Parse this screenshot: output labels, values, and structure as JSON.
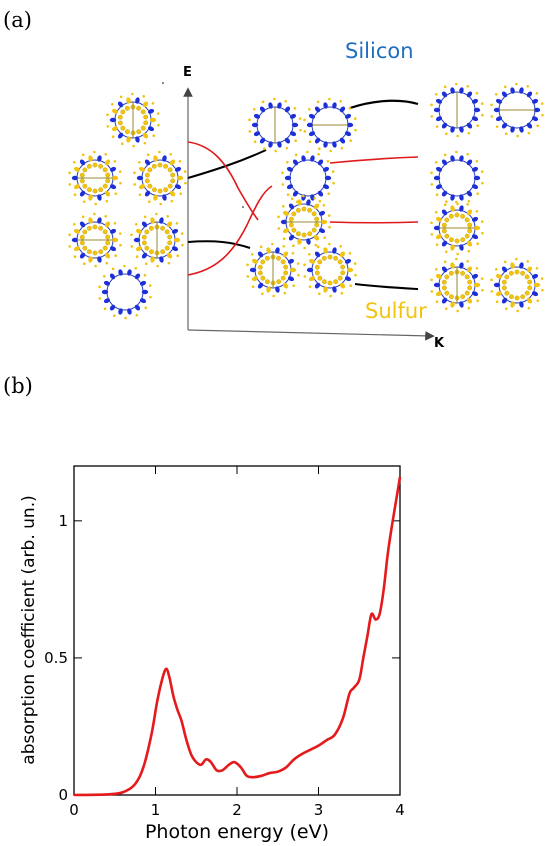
{
  "panel_a": {
    "label": "(a)",
    "e_axis": "E",
    "k_axis": "K",
    "silicon": "Silicon",
    "sulfur": "Sulfur",
    "colors": {
      "silicon": "#1f6fc0",
      "sulfur": "#f2c30f",
      "band_black": "#000000",
      "band_red": "#e0191b"
    }
  },
  "panel_b": {
    "label": "(b)"
  },
  "chart_data": {
    "type": "line",
    "title": "",
    "xlabel": "Photon energy (eV)",
    "ylabel": "absorption coefficient (arb. un.)",
    "xlim": [
      0,
      4
    ],
    "ylim": [
      0,
      1.2
    ],
    "xticks": [
      0,
      1,
      2,
      3,
      4
    ],
    "yticks": [
      0,
      0.5,
      1
    ],
    "xtick_labels": [
      "0",
      "1",
      "2",
      "3",
      "4"
    ],
    "ytick_labels": [
      "0",
      "0.5",
      "1"
    ],
    "grid": false,
    "color": "#e41a1c",
    "series": [
      {
        "x": [
          0,
          0.4,
          0.6,
          0.75,
          0.85,
          0.95,
          1.02,
          1.08,
          1.13,
          1.17,
          1.22,
          1.27,
          1.32,
          1.38,
          1.45,
          1.55,
          1.62,
          1.68,
          1.75,
          1.82,
          1.9,
          1.97,
          2.05,
          2.12,
          2.2,
          2.3,
          2.4,
          2.5,
          2.6,
          2.7,
          2.8,
          2.9,
          3.0,
          3.1,
          3.2,
          3.3,
          3.38,
          3.43,
          3.5,
          3.55,
          3.6,
          3.65,
          3.7,
          3.75,
          3.8,
          3.85,
          3.9,
          3.95,
          4.0
        ],
        "y": [
          0,
          0.002,
          0.01,
          0.04,
          0.1,
          0.22,
          0.34,
          0.42,
          0.46,
          0.43,
          0.36,
          0.31,
          0.27,
          0.2,
          0.14,
          0.11,
          0.13,
          0.12,
          0.09,
          0.09,
          0.11,
          0.12,
          0.1,
          0.07,
          0.065,
          0.07,
          0.08,
          0.085,
          0.1,
          0.13,
          0.15,
          0.165,
          0.18,
          0.2,
          0.22,
          0.28,
          0.37,
          0.39,
          0.42,
          0.5,
          0.58,
          0.66,
          0.64,
          0.66,
          0.75,
          0.88,
          0.98,
          1.07,
          1.16
        ]
      }
    ]
  }
}
